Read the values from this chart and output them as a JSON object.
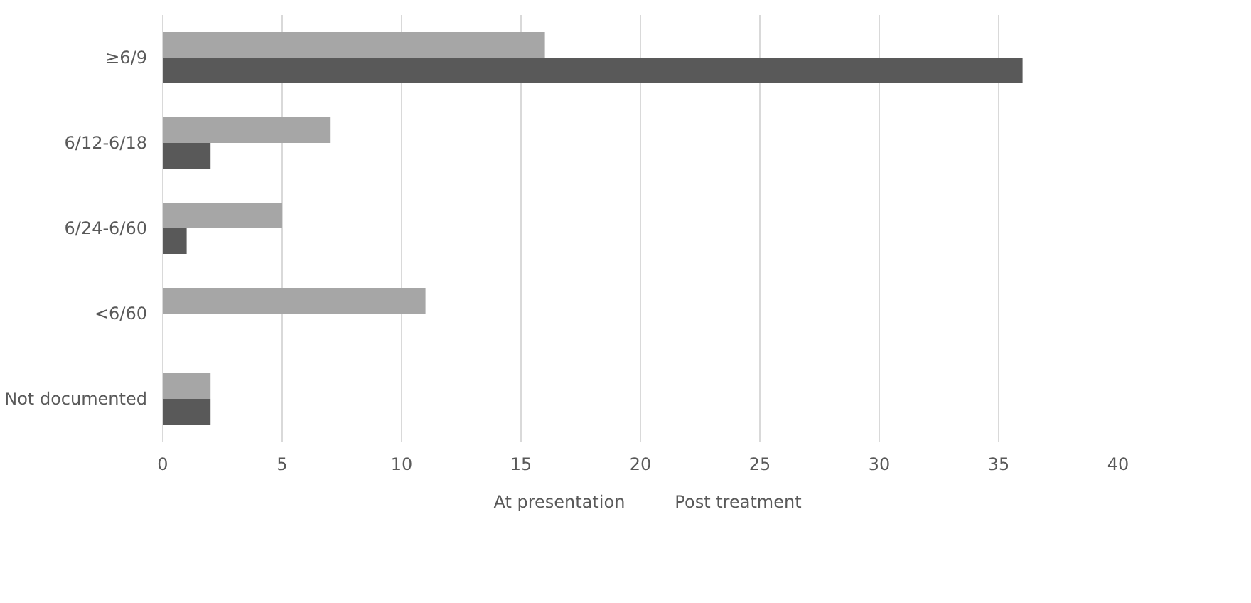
{
  "chart_data": {
    "type": "bar",
    "orientation": "horizontal",
    "categories": [
      "≥6/9",
      "6/12-6/18",
      "6/24-6/60",
      "<6/60",
      "Not documented"
    ],
    "series": [
      {
        "name": "At presentation",
        "color": "#a6a6a6",
        "values": [
          16,
          7,
          5,
          11,
          2
        ]
      },
      {
        "name": "Post treatment",
        "color": "#595959",
        "values": [
          36,
          2,
          1,
          0,
          2
        ]
      }
    ],
    "xlim": [
      0,
      40
    ],
    "xticks": [
      0,
      5,
      10,
      15,
      20,
      25,
      30,
      35,
      40
    ],
    "grid": "x",
    "legend": "bottom"
  }
}
